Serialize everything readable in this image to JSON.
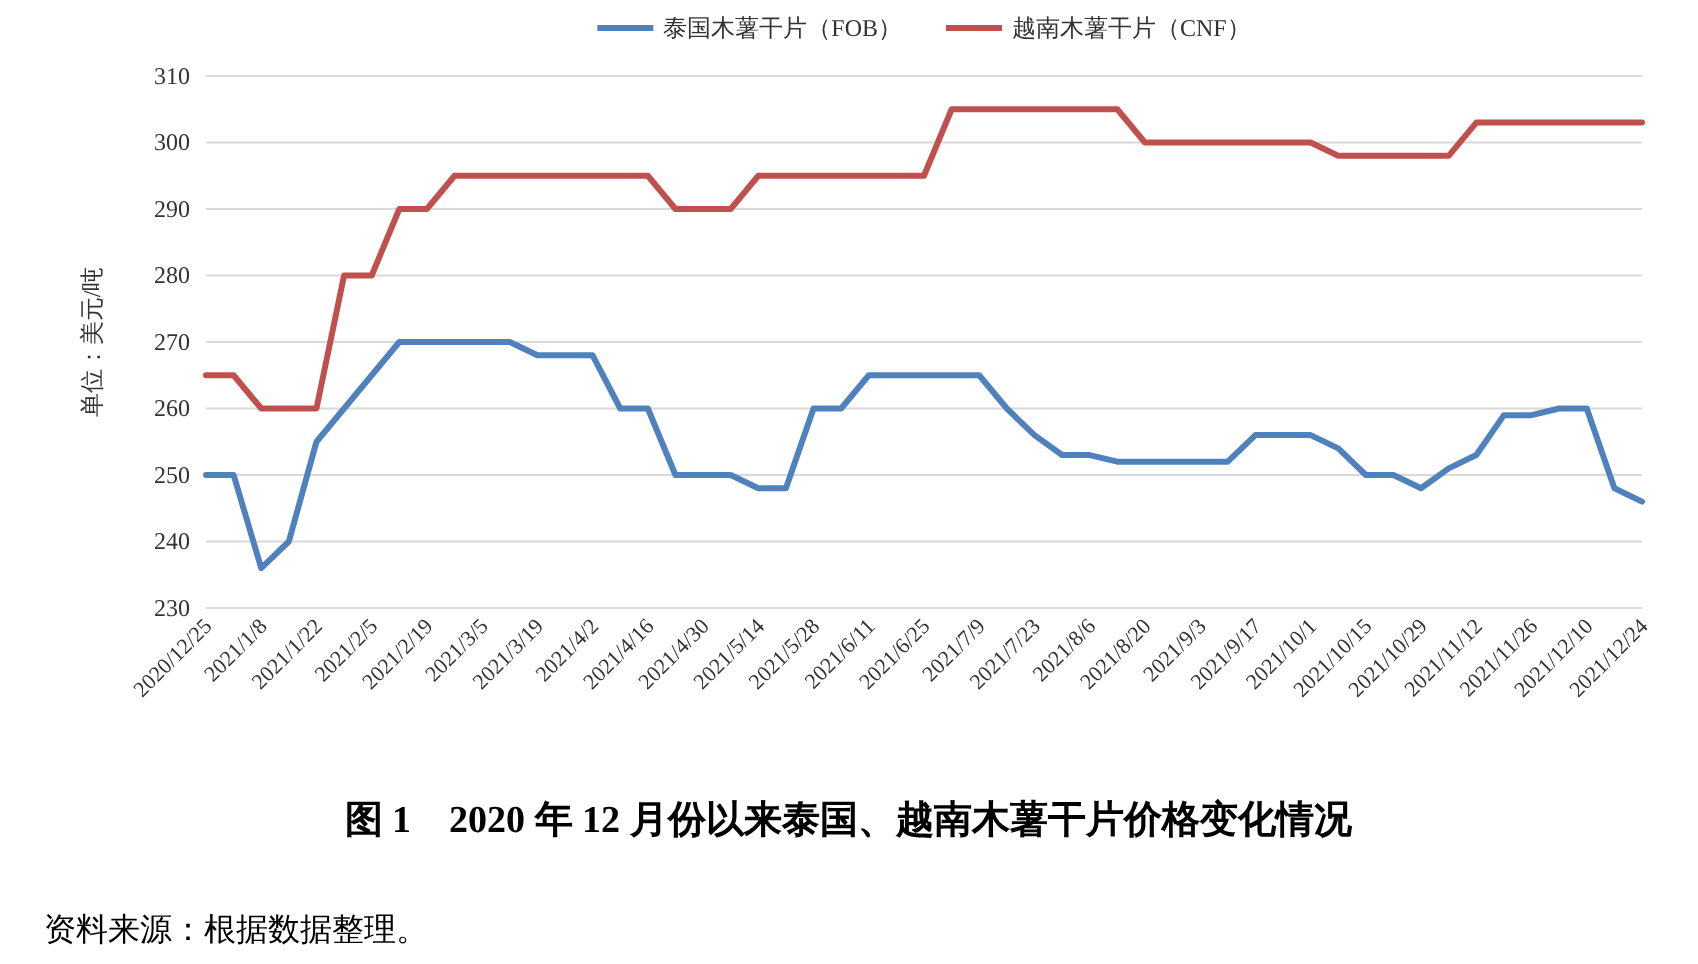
{
  "chart_data": {
    "type": "line",
    "title": "图 1　2020 年 12 月份以来泰国、越南木薯干片价格变化情况",
    "ylabel": "单位：美元/吨",
    "annotations": [
      "资料来源：根据数据整理。"
    ],
    "categories": [
      "2020/12/25",
      null,
      "2021/1/8",
      null,
      "2021/1/22",
      null,
      "2021/2/5",
      null,
      "2021/2/19",
      null,
      "2021/3/5",
      null,
      "2021/3/19",
      null,
      "2021/4/2",
      null,
      "2021/4/16",
      null,
      "2021/4/30",
      null,
      "2021/5/14",
      null,
      "2021/5/28",
      null,
      "2021/6/11",
      null,
      "2021/6/25",
      null,
      "2021/7/9",
      null,
      "2021/7/23",
      null,
      "2021/8/6",
      null,
      "2021/8/20",
      null,
      "2021/9/3",
      null,
      "2021/9/17",
      null,
      "2021/10/1",
      null,
      "2021/10/15",
      null,
      "2021/10/29",
      null,
      "2021/11/12",
      null,
      "2021/11/26",
      null,
      "2021/12/10",
      null,
      "2021/12/24"
    ],
    "series": [
      {
        "name": "泰国木薯干片（FOB）",
        "color": "#4f81bd",
        "values": [
          250,
          250,
          236,
          240,
          255,
          260,
          265,
          270,
          270,
          270,
          270,
          270,
          268,
          268,
          268,
          260,
          260,
          250,
          250,
          250,
          248,
          248,
          260,
          260,
          265,
          265,
          265,
          265,
          265,
          260,
          256,
          253,
          253,
          252,
          252,
          252,
          252,
          252,
          256,
          256,
          256,
          254,
          250,
          250,
          248,
          251,
          253,
          259,
          259,
          260,
          260,
          248,
          246
        ]
      },
      {
        "name": "越南木薯干片（CNF）",
        "color": "#c0504d",
        "values": [
          265,
          265,
          260,
          260,
          260,
          280,
          280,
          290,
          290,
          295,
          295,
          295,
          295,
          295,
          295,
          295,
          295,
          290,
          290,
          290,
          295,
          295,
          295,
          295,
          295,
          295,
          295,
          305,
          305,
          305,
          305,
          305,
          305,
          305,
          300,
          300,
          300,
          300,
          300,
          300,
          300,
          298,
          298,
          298,
          298,
          298,
          303,
          303,
          303,
          303,
          303,
          303,
          303
        ]
      }
    ],
    "ylim": [
      230,
      310
    ],
    "yticks": [
      230,
      240,
      250,
      260,
      270,
      280,
      290,
      300,
      310
    ],
    "grid": "y",
    "legend": "top",
    "marker": "none",
    "line_style": "solid"
  }
}
